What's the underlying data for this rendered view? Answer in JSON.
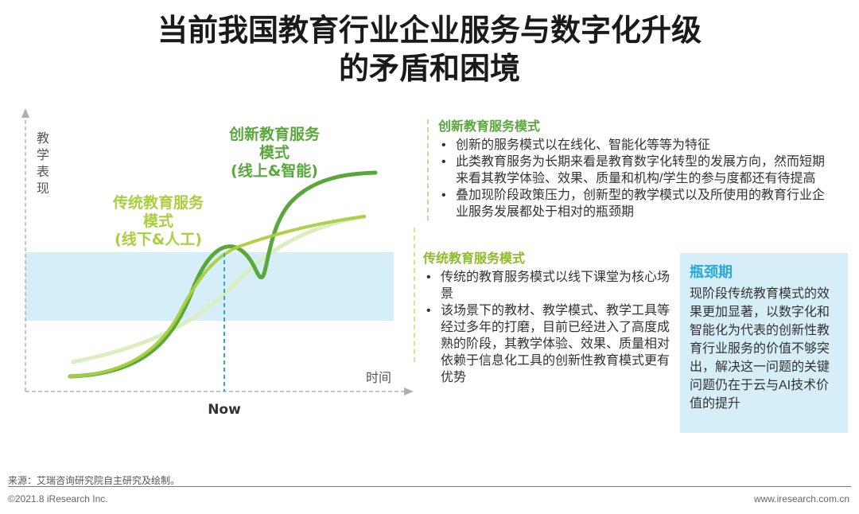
{
  "title": {
    "line1": "当前我国教育行业企业服务与数字化升级",
    "line2": "的矛盾和困境"
  },
  "diagram": {
    "y_axis_label": [
      "教",
      "学",
      "表",
      "现"
    ],
    "x_axis_label": "时间",
    "now_label": "Now",
    "innovative_label": [
      "创新教育服务",
      "模式",
      "(线上&智能)"
    ],
    "traditional_label": [
      "传统教育服务",
      "模式",
      "(线下&人工)"
    ],
    "colors": {
      "innovative": "#5aa83c",
      "traditional": "#8dbb2a",
      "band": "#d6eef8",
      "now_line": "#2aa9d8"
    }
  },
  "innovative": {
    "title": "创新教育服务模式",
    "bullets": [
      "创新的服务模式以在线化、智能化等等为特征",
      "此类教育服务为长期来看是教育数字化转型的发展方向，然而短期来看其教学体验、效果、质量和机构/学生的参与度都还有待提高",
      "叠加现阶段政策压力，创新型的教学模式以及所使用的教育行业企业服务发展都处于相对的瓶颈期"
    ]
  },
  "traditional": {
    "title": "传统教育服务模式",
    "bullets": [
      "传统的教育服务模式以线下课堂为核心场景",
      "该场景下的教材、教学模式、教学工具等经过多年的打磨，目前已经进入了高度成熟的阶段，其教学体验、效果、质量相对依赖于信息化工具的创新性教育模式更有优势"
    ]
  },
  "bottleneck": {
    "title": "瓶颈期",
    "body": "现阶段传统教育模式的效果更加显著，以数字化和智能化为代表的创新性教育行业服务的价值不够突出，解决这一问题的关键问题仍在于云与AI技术价值的提升"
  },
  "footer": {
    "source": "来源：艾瑞咨询研究院自主研究及绘制。",
    "copyright": "©2021.8 iResearch Inc.",
    "website": "www.iresearch.com.cn"
  }
}
